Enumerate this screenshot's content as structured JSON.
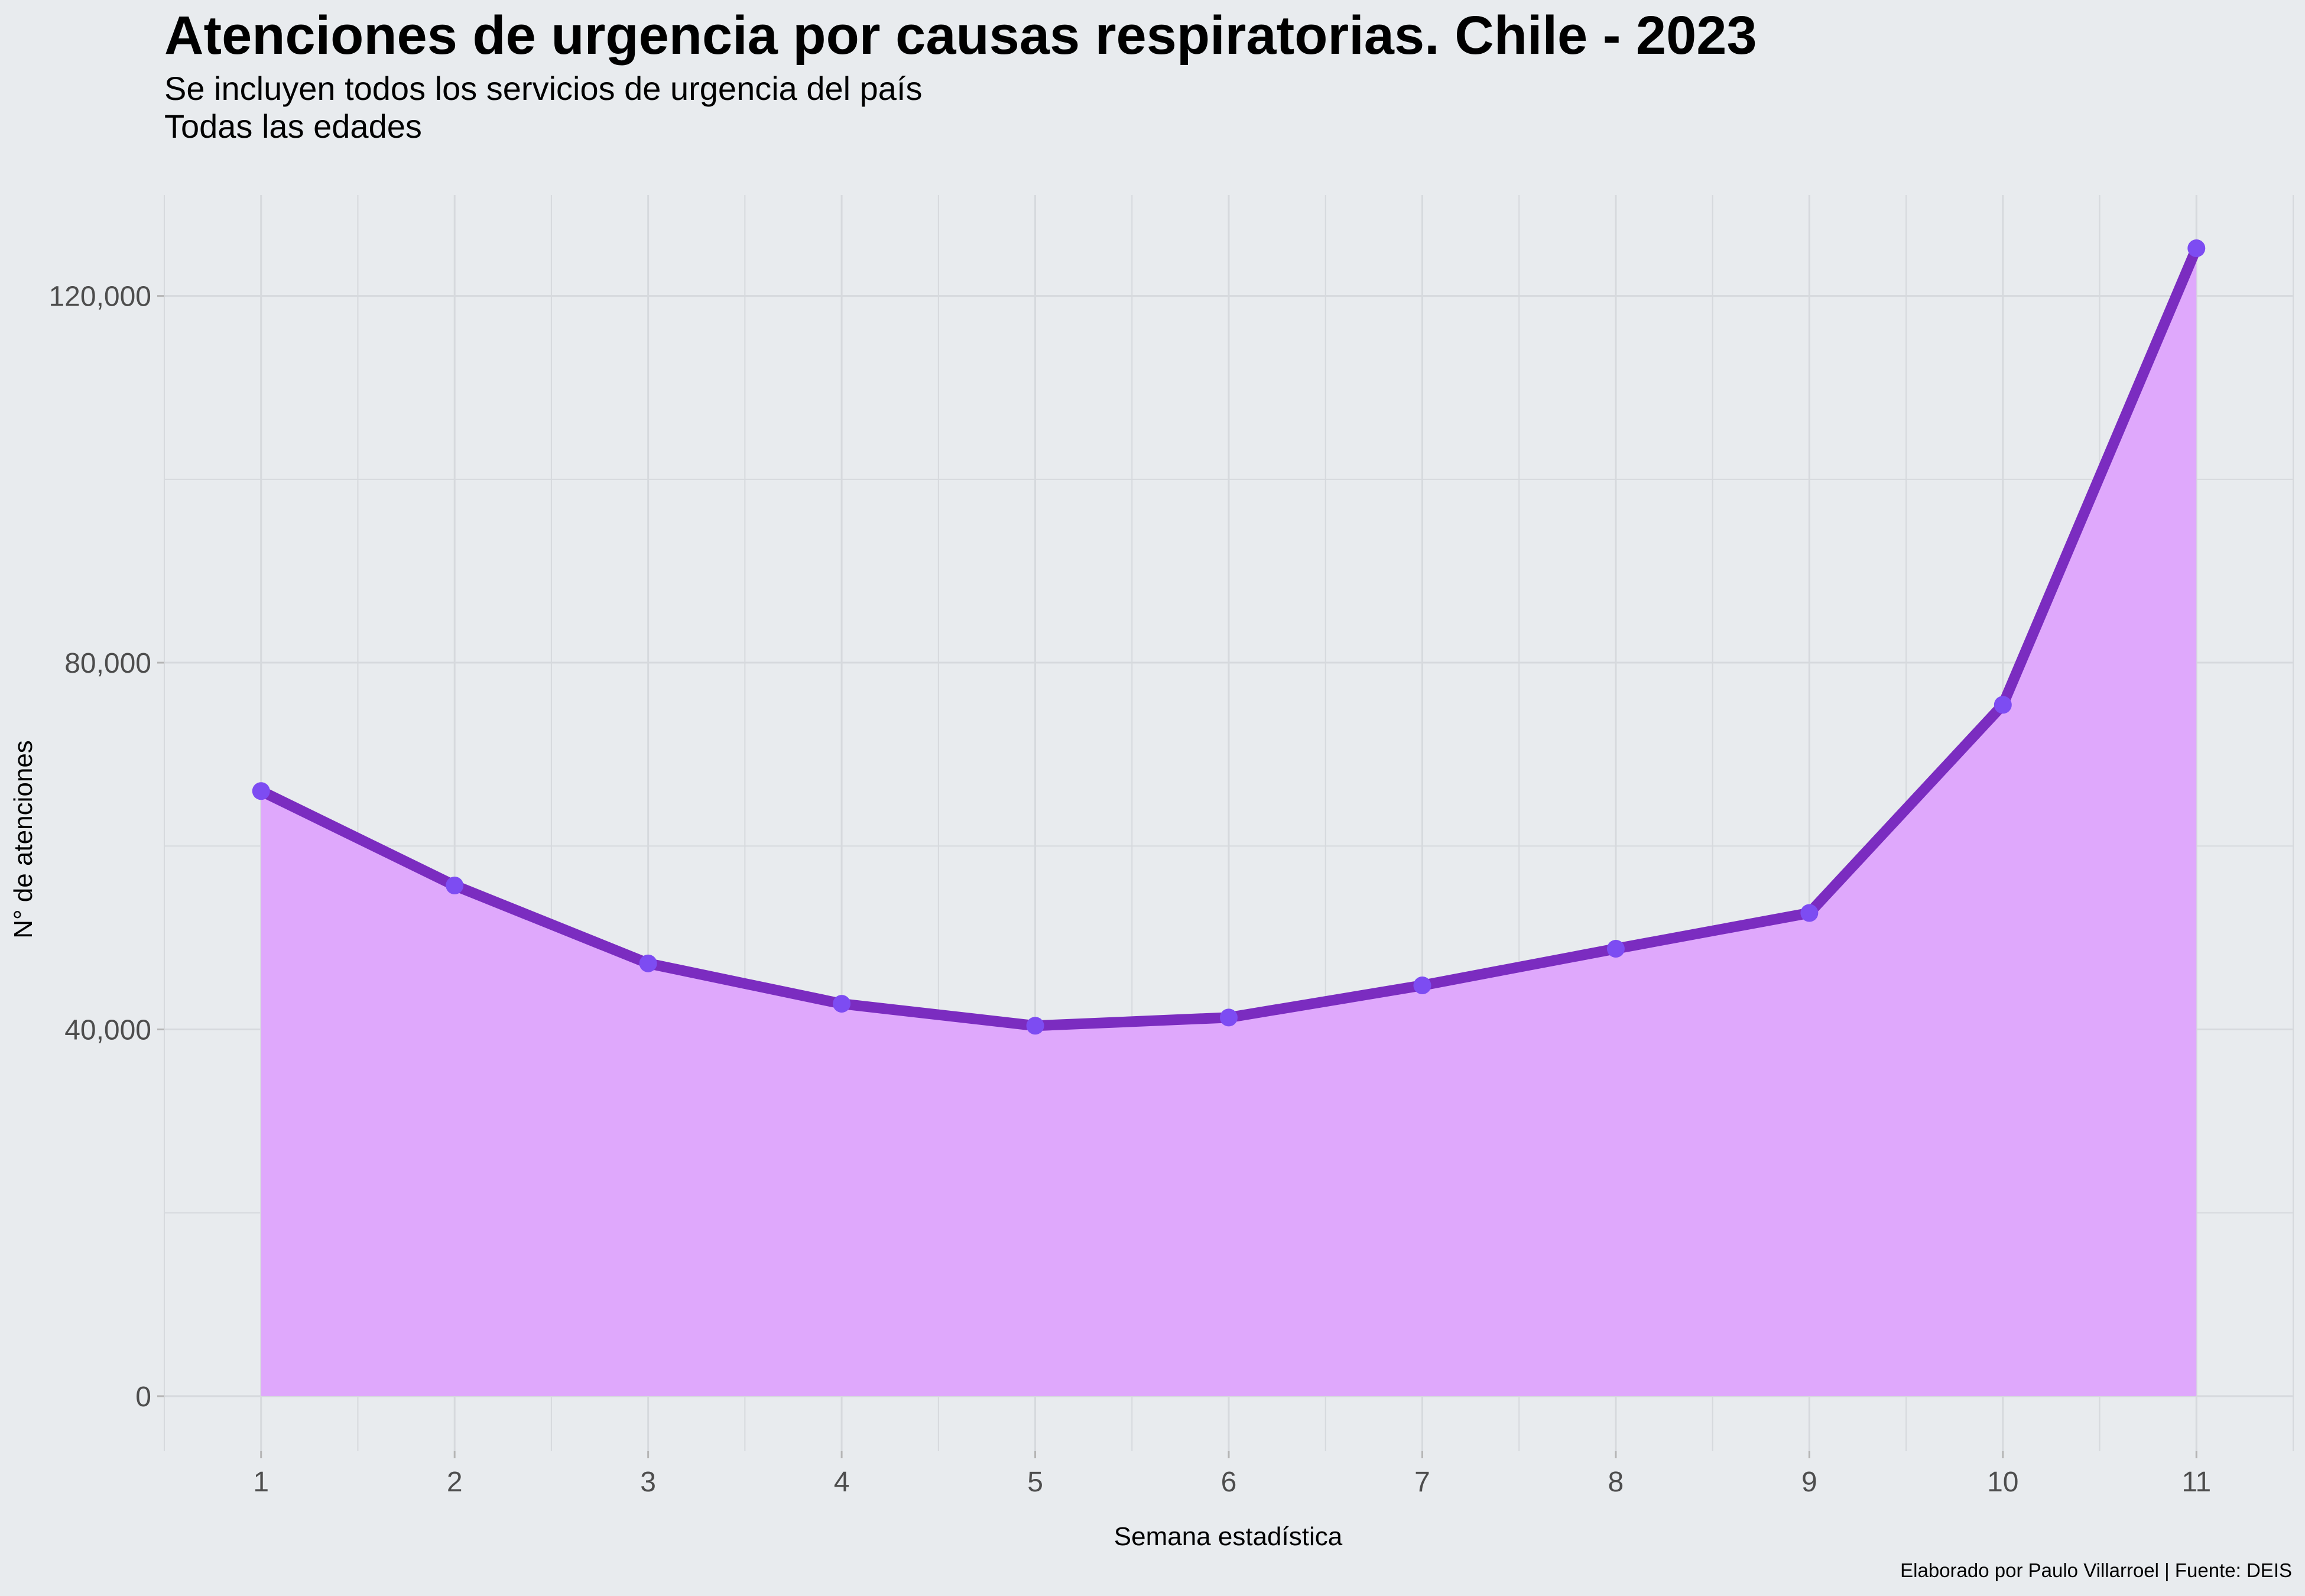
{
  "chart_data": {
    "type": "area",
    "title": "Atenciones de urgencia por causas respiratorias. Chile - 2023",
    "subtitle": "Se incluyen todos los servicios de urgencia del país\nTodas las edades",
    "xlabel": "Semana estadística",
    "ylabel": "N° de atenciones",
    "caption": "Elaborado por Paulo Villarroel | Fuente: DEIS",
    "x": [
      1,
      2,
      3,
      4,
      5,
      6,
      7,
      8,
      9,
      10,
      11
    ],
    "x_tick_labels": [
      "1",
      "2",
      "3",
      "4",
      "5",
      "6",
      "7",
      "8",
      "9",
      "10",
      "11"
    ],
    "series": [
      {
        "values": [
          66000,
          55700,
          47200,
          42800,
          40400,
          41300,
          44800,
          48800,
          52700,
          75400,
          125200
        ]
      }
    ],
    "y_ticks": [
      0,
      40000,
      80000,
      120000
    ],
    "y_tick_labels": [
      "0",
      "40,000",
      "80,000",
      "120,000"
    ],
    "xlim": [
      0.5,
      11.5
    ],
    "ylim": [
      -6000,
      131000
    ],
    "grid": true,
    "colors": {
      "background": "#e8ebee",
      "grid": "#d6d9dd",
      "area_fill": "#dfa8fc",
      "line": "#7b2cc0",
      "points": "#7d4cf2",
      "tick_text": "#4d4d4d"
    }
  }
}
